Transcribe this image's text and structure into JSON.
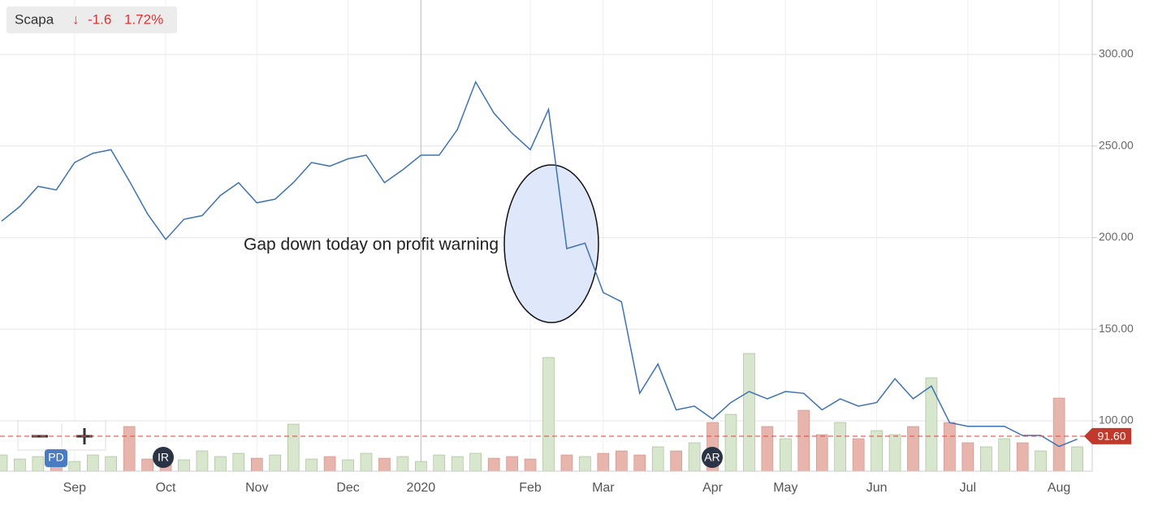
{
  "chart_data": {
    "type": "line",
    "quote": {
      "change": "-1.6",
      "change_percent": "1.72%"
    },
    "annotation": "Gap down today on profit warning",
    "events": [
      "PD",
      "IR",
      "AR"
    ],
    "last_price": {
      "value": 91.6,
      "label": "91.60"
    },
    "categories": [
      null,
      null,
      null,
      null,
      "Sep",
      null,
      null,
      null,
      null,
      "Oct",
      null,
      null,
      null,
      null,
      "Nov",
      null,
      null,
      null,
      null,
      "Dec",
      null,
      null,
      null,
      "2020",
      null,
      null,
      null,
      null,
      null,
      "Feb",
      null,
      null,
      null,
      "Mar",
      null,
      null,
      null,
      null,
      null,
      "Apr",
      null,
      null,
      null,
      "May",
      null,
      null,
      null,
      null,
      "Jun",
      null,
      null,
      null,
      null,
      "Jul",
      null,
      null,
      null,
      null,
      "Aug",
      null
    ],
    "series": [
      {
        "name": "Scapa",
        "color": "#3d72b4",
        "values": [
          209,
          217,
          228,
          226,
          241,
          246,
          248,
          231,
          213,
          199,
          210,
          212,
          223,
          230,
          219,
          221,
          230,
          241,
          239,
          243,
          245,
          230,
          237,
          245,
          245,
          259,
          285,
          268,
          257,
          248,
          270,
          194,
          197,
          170,
          165,
          115,
          131,
          106,
          108,
          101,
          110,
          116,
          112,
          116,
          115,
          106,
          112,
          108,
          110,
          123,
          112,
          119,
          99,
          97,
          97,
          97,
          92,
          92,
          86,
          90
        ]
      }
    ],
    "volume": [
      20,
      15,
      18,
      22,
      12,
      20,
      18,
      55,
      15,
      20,
      14,
      25,
      18,
      22,
      16,
      20,
      58,
      15,
      18,
      14,
      22,
      16,
      18,
      12,
      20,
      18,
      22,
      16,
      18,
      15,
      140,
      20,
      18,
      22,
      25,
      20,
      30,
      25,
      35,
      60,
      70,
      145,
      55,
      40,
      75,
      45,
      60,
      40,
      50,
      45,
      55,
      115,
      60,
      35,
      30,
      40,
      35,
      25,
      90,
      30
    ],
    "volume_lim": [
      0,
      150
    ],
    "volume_up_color": "#d7e6cc",
    "volume_down_color": "#e8b5ad",
    "ylim": [
      72.5,
      329.7
    ],
    "yticks": [
      {
        "value": 100,
        "label": "100.00"
      },
      {
        "value": 150,
        "label": "150.00"
      },
      {
        "value": 200,
        "label": "200.00"
      },
      {
        "value": 250,
        "label": "250.00"
      },
      {
        "value": 300,
        "label": "300.00"
      }
    ],
    "grid": true
  }
}
